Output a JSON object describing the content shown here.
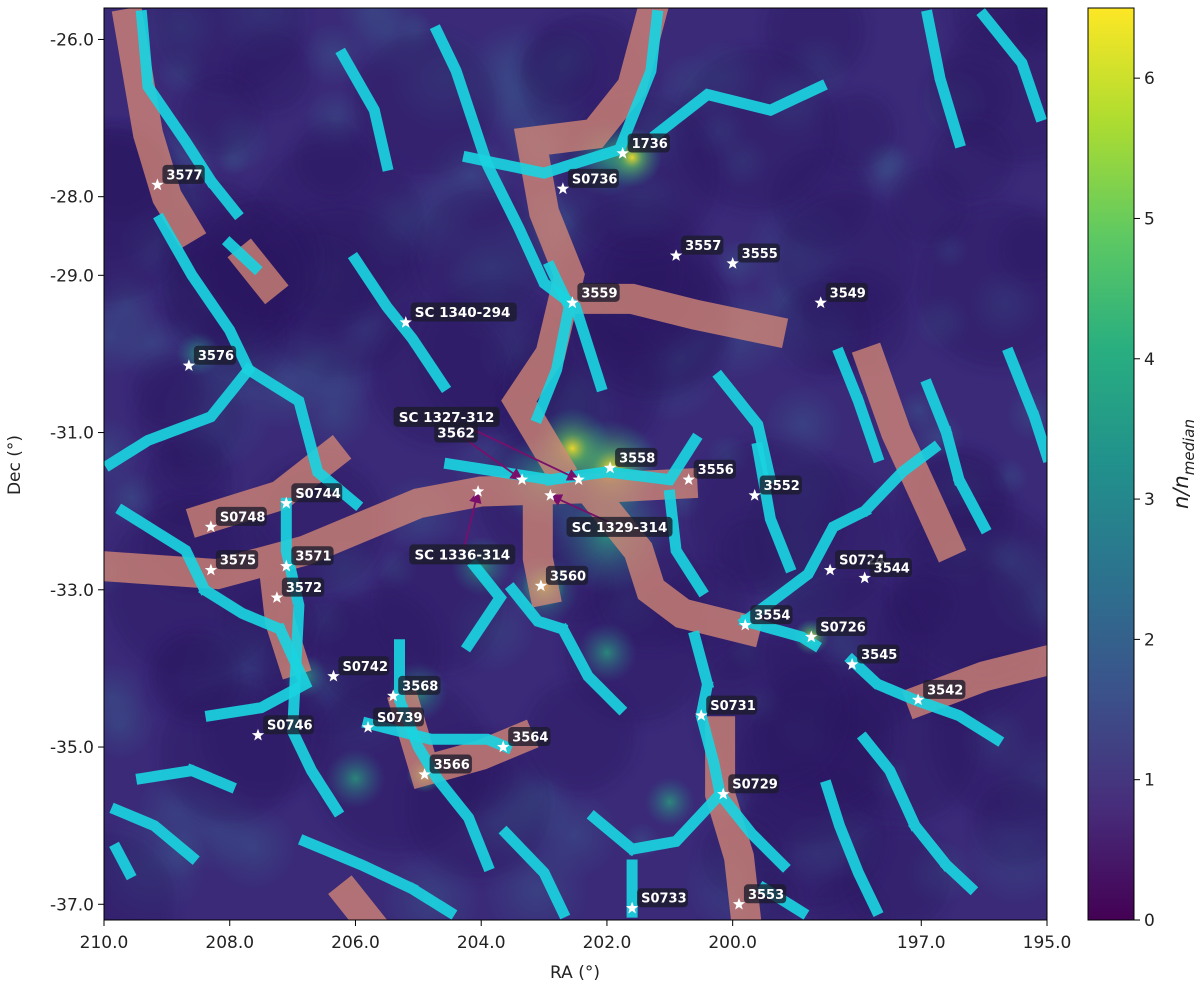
{
  "chart_data": {
    "type": "heatmap",
    "xlabel": "RA (°)",
    "ylabel": "Dec (°)",
    "colorbar_label": "n/n",
    "colorbar_label_sub": "median",
    "xlim": [
      210.0,
      195.0
    ],
    "ylim": [
      -37.2,
      -25.6
    ],
    "x_ticks": [
      {
        "value": 210.0,
        "label": "210.0"
      },
      {
        "value": 208.0,
        "label": "208.0"
      },
      {
        "value": 206.0,
        "label": "206.0"
      },
      {
        "value": 204.0,
        "label": "204.0"
      },
      {
        "value": 202.0,
        "label": "202.0"
      },
      {
        "value": 200.0,
        "label": "200.0"
      },
      {
        "value": 197.0,
        "label": "197.0"
      },
      {
        "value": 195.0,
        "label": "195.0"
      }
    ],
    "y_ticks": [
      {
        "value": -26.0,
        "label": "-26.0"
      },
      {
        "value": -28.0,
        "label": "-28.0"
      },
      {
        "value": -29.0,
        "label": "-29.0"
      },
      {
        "value": -31.0,
        "label": "-31.0"
      },
      {
        "value": -33.0,
        "label": "-33.0"
      },
      {
        "value": -35.0,
        "label": "-35.0"
      },
      {
        "value": -37.0,
        "label": "-37.0"
      }
    ],
    "colorbar_range": [
      0,
      6.5
    ],
    "colorbar_ticks": [
      {
        "value": 0,
        "label": "0"
      },
      {
        "value": 1,
        "label": "1"
      },
      {
        "value": 2,
        "label": "2"
      },
      {
        "value": 3,
        "label": "3"
      },
      {
        "value": 4,
        "label": "4"
      },
      {
        "value": 5,
        "label": "5"
      },
      {
        "value": 6,
        "label": "6"
      }
    ],
    "colormap": [
      "#440154",
      "#472d7b",
      "#3b528b",
      "#2c728e",
      "#21918c",
      "#28ae80",
      "#5ec962",
      "#addc30",
      "#fde725"
    ],
    "filament_color": "#1ad3e0",
    "supercluster_region_color": "#d98a76",
    "marker_color": "#ffffff",
    "annotation_arrow_color": "#7a0f6b",
    "clusters": [
      {
        "name": "1736",
        "ra": 201.75,
        "dec": -27.45
      },
      {
        "name": "3577",
        "ra": 209.15,
        "dec": -27.85
      },
      {
        "name": "S0736",
        "ra": 202.7,
        "dec": -27.9
      },
      {
        "name": "3557",
        "ra": 200.9,
        "dec": -28.75
      },
      {
        "name": "3555",
        "ra": 200.0,
        "dec": -28.85
      },
      {
        "name": "3549",
        "ra": 198.6,
        "dec": -29.35
      },
      {
        "name": "3559",
        "ra": 202.55,
        "dec": -29.35
      },
      {
        "name": "SC 1340-294",
        "ra": 205.2,
        "dec": -29.6
      },
      {
        "name": "3576",
        "ra": 208.65,
        "dec": -30.15
      },
      {
        "name": "3558",
        "ra": 201.95,
        "dec": -31.45
      },
      {
        "name": "3556",
        "ra": 200.7,
        "dec": -31.6
      },
      {
        "name": "3552",
        "ra": 199.65,
        "dec": -31.8
      },
      {
        "name": "S0744",
        "ra": 207.1,
        "dec": -31.9
      },
      {
        "name": "S0748",
        "ra": 208.3,
        "dec": -32.2
      },
      {
        "name": "3575",
        "ra": 208.3,
        "dec": -32.75
      },
      {
        "name": "3571",
        "ra": 207.1,
        "dec": -32.7
      },
      {
        "name": "3572",
        "ra": 207.25,
        "dec": -33.1
      },
      {
        "name": "3560",
        "ra": 203.05,
        "dec": -32.95
      },
      {
        "name": "S0724",
        "ra": 198.45,
        "dec": -32.75
      },
      {
        "name": "3544",
        "ra": 197.9,
        "dec": -32.85
      },
      {
        "name": "3554",
        "ra": 199.8,
        "dec": -33.45
      },
      {
        "name": "S0726",
        "ra": 198.75,
        "dec": -33.6
      },
      {
        "name": "3545",
        "ra": 198.1,
        "dec": -33.95
      },
      {
        "name": "S0742",
        "ra": 206.35,
        "dec": -34.1
      },
      {
        "name": "3568",
        "ra": 205.4,
        "dec": -34.35
      },
      {
        "name": "3542",
        "ra": 197.05,
        "dec": -34.4
      },
      {
        "name": "S0739",
        "ra": 205.8,
        "dec": -34.75
      },
      {
        "name": "S0731",
        "ra": 200.5,
        "dec": -34.6
      },
      {
        "name": "S0746",
        "ra": 207.55,
        "dec": -34.85
      },
      {
        "name": "3564",
        "ra": 203.65,
        "dec": -35.0
      },
      {
        "name": "3566",
        "ra": 204.9,
        "dec": -35.35
      },
      {
        "name": "S0729",
        "ra": 200.15,
        "dec": -35.6
      },
      {
        "name": "S0733",
        "ra": 201.6,
        "dec": -37.05
      },
      {
        "name": "3553",
        "ra": 199.9,
        "dec": -37.0
      },
      {
        "name": "SC 1327-312",
        "ra": 202.45,
        "dec": -31.6
      },
      {
        "name": "3562",
        "ra": 203.35,
        "dec": -31.6
      },
      {
        "name": "SC 1329-314",
        "ra": 202.9,
        "dec": -31.8
      },
      {
        "name": "SC 1336-314",
        "ra": 204.05,
        "dec": -31.75
      }
    ],
    "annotations": [
      {
        "target": "SC 1327-312",
        "text": "SC 1327-312",
        "from_ra": 204.55,
        "from_dec": -30.8
      },
      {
        "target": "3562",
        "text": "3562",
        "from_ra": 204.4,
        "from_dec": -31.0
      },
      {
        "target": "SC 1329-314",
        "text": "SC 1329-314",
        "from_ra": 201.8,
        "from_dec": -32.2
      },
      {
        "target": "SC 1336-314",
        "text": "SC 1336-314",
        "from_ra": 204.3,
        "from_dec": -32.55
      }
    ]
  }
}
